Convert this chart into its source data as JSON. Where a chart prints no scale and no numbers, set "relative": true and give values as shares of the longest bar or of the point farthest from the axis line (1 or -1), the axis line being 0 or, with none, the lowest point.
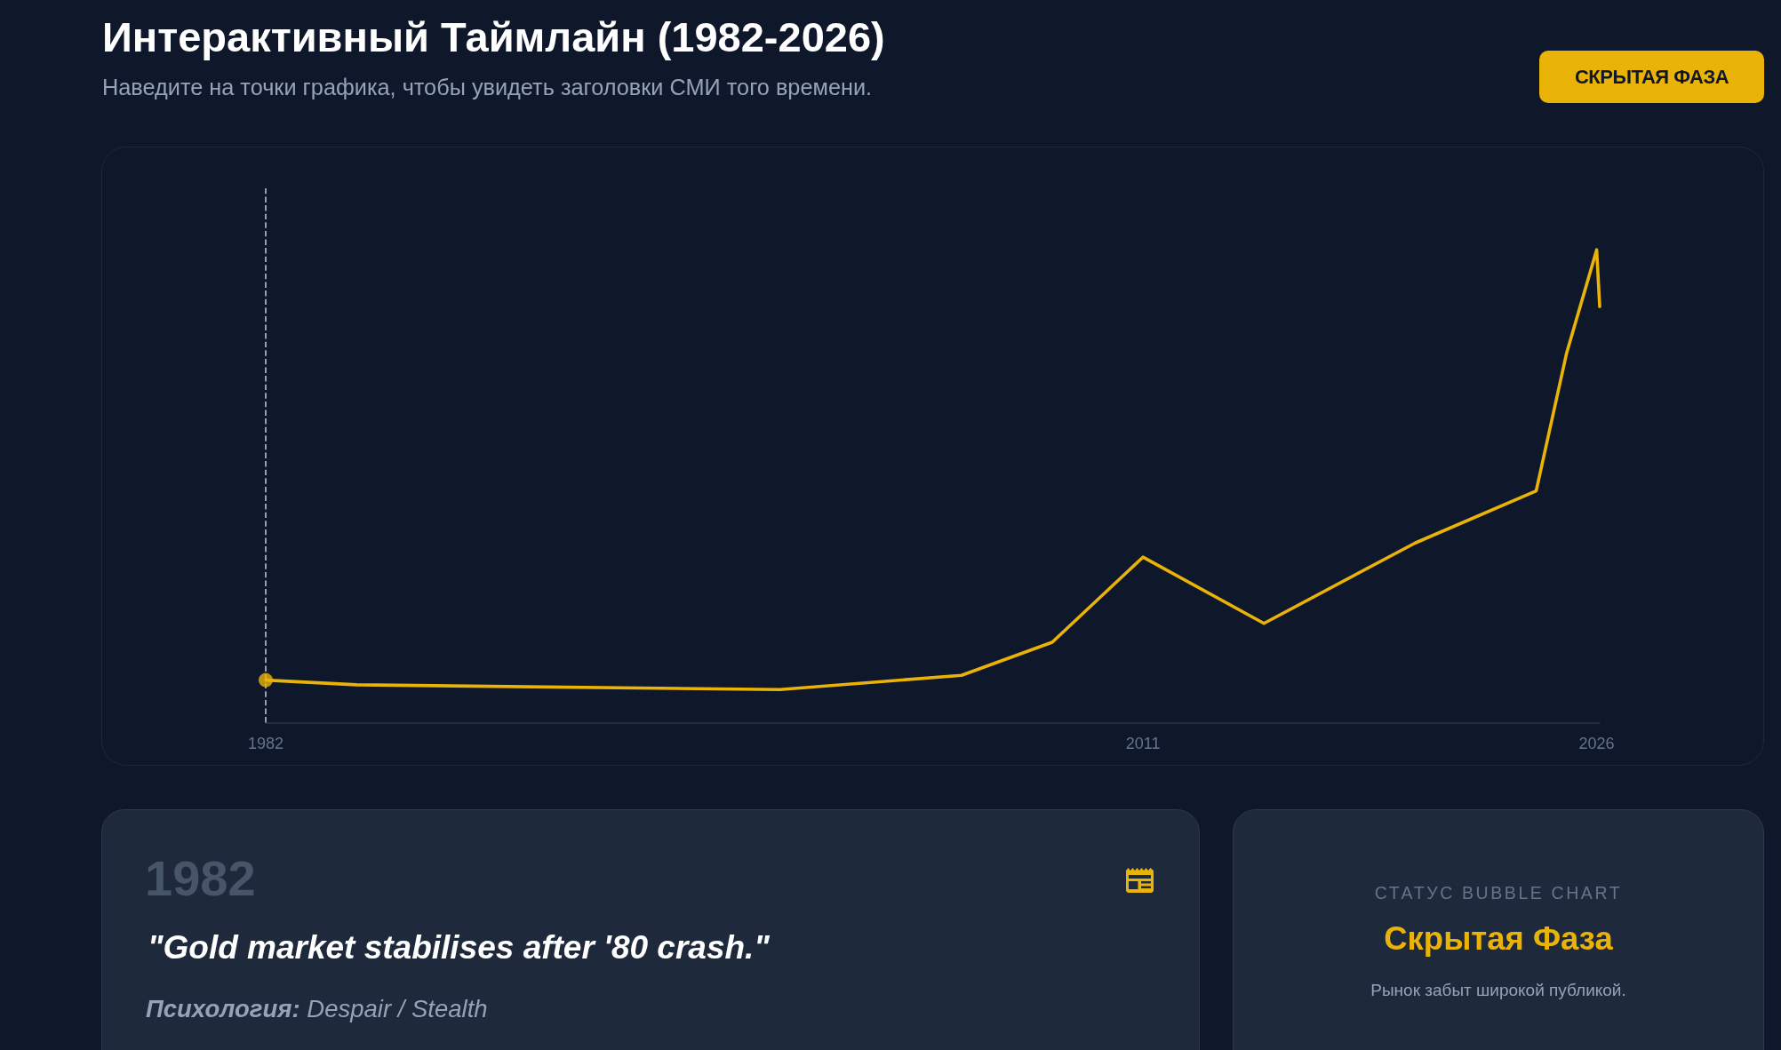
{
  "chart_data": {
    "type": "line",
    "title": "Интерактивный Таймлайн (1982-2026)",
    "subtitle": "Наведите на точки графика, чтобы увидеть заголовки СМИ того времени.",
    "x": [
      1982,
      1985,
      1999,
      2005,
      2008,
      2011,
      2015,
      2020,
      2024,
      2025,
      2026,
      2026.1
    ],
    "xlim": [
      1982,
      2026.1
    ],
    "xticks": [
      1982,
      2011,
      2026
    ],
    "relative": true,
    "marker": "none",
    "line_style": "solid",
    "series": [
      {
        "color": "#eab308",
        "values": [
          0.09,
          0.08,
          0.07,
          0.1,
          0.17,
          0.35,
          0.21,
          0.38,
          0.49,
          0.78,
          1,
          0.88
        ]
      },
      {
        "type": "scatter",
        "marker": "circle",
        "x": [
          1982
        ],
        "color": "#eab308",
        "values": [
          0.09
        ]
      }
    ],
    "ref_lines": [
      {
        "axis": "x",
        "value": 1982,
        "color": "#cbd5e1",
        "line_style": "dashed"
      }
    ],
    "annotations": [
      "СКРЫТАЯ ФАЗА",
      "1982",
      "\"Gold market stabilises after '80 crash.\"",
      "Психология:",
      "Despair / Stealth",
      "СТАТУС BUBBLE CHART",
      "Скрытая Фаза",
      "Рынок забыт широкой публикой."
    ]
  }
}
